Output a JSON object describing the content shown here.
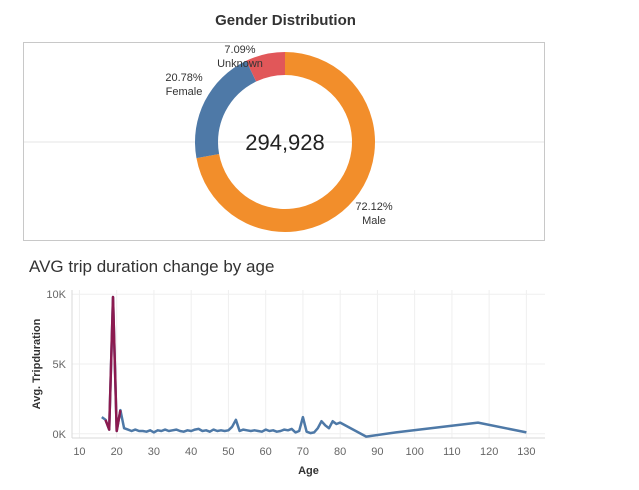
{
  "chart_data": [
    {
      "type": "pie",
      "title": "Gender Distribution",
      "total_label": "294,928",
      "slices": [
        {
          "name": "Male",
          "pct_label": "72.12%",
          "value": 72.12,
          "color": "#f28e2b"
        },
        {
          "name": "Female",
          "pct_label": "20.78%",
          "value": 20.78,
          "color": "#4e79a7"
        },
        {
          "name": "Unknown",
          "pct_label": "7.09%",
          "value": 7.09,
          "color": "#e15759"
        }
      ]
    },
    {
      "type": "line",
      "title": "AVG trip duration change by age",
      "xlabel": "Age",
      "ylabel": "Avg. Tripduration",
      "xlim": [
        8,
        135
      ],
      "ylim": [
        -300,
        10300
      ],
      "xticks": [
        10,
        20,
        30,
        40,
        50,
        60,
        70,
        80,
        90,
        100,
        110,
        120,
        130
      ],
      "yticks": [
        0,
        5000,
        10000
      ],
      "ytick_labels": [
        "0K",
        "5K",
        "10K"
      ],
      "grid": true,
      "color": "#4e79a7",
      "highlight_color": "#8b1a4f",
      "highlight_range": [
        17,
        21
      ],
      "x": [
        16,
        17,
        18,
        19,
        20,
        21,
        22,
        23,
        24,
        25,
        26,
        27,
        28,
        29,
        30,
        31,
        32,
        33,
        34,
        35,
        36,
        37,
        38,
        39,
        40,
        41,
        42,
        43,
        44,
        45,
        46,
        47,
        48,
        49,
        50,
        51,
        52,
        53,
        54,
        55,
        56,
        57,
        58,
        59,
        60,
        61,
        62,
        63,
        64,
        65,
        66,
        67,
        68,
        69,
        70,
        71,
        72,
        73,
        74,
        75,
        76,
        77,
        78,
        79,
        80,
        87,
        95,
        117,
        130
      ],
      "y": [
        1200,
        1000,
        300,
        9800,
        200,
        1700,
        400,
        300,
        200,
        300,
        200,
        200,
        150,
        250,
        100,
        250,
        200,
        300,
        200,
        250,
        300,
        200,
        150,
        250,
        200,
        300,
        350,
        200,
        250,
        150,
        300,
        200,
        250,
        200,
        250,
        500,
        1000,
        200,
        300,
        250,
        200,
        250,
        200,
        150,
        300,
        200,
        250,
        150,
        200,
        300,
        250,
        350,
        100,
        200,
        1200,
        150,
        50,
        100,
        400,
        900,
        600,
        400,
        900,
        700,
        800,
        -200,
        100,
        800,
        100
      ]
    }
  ]
}
